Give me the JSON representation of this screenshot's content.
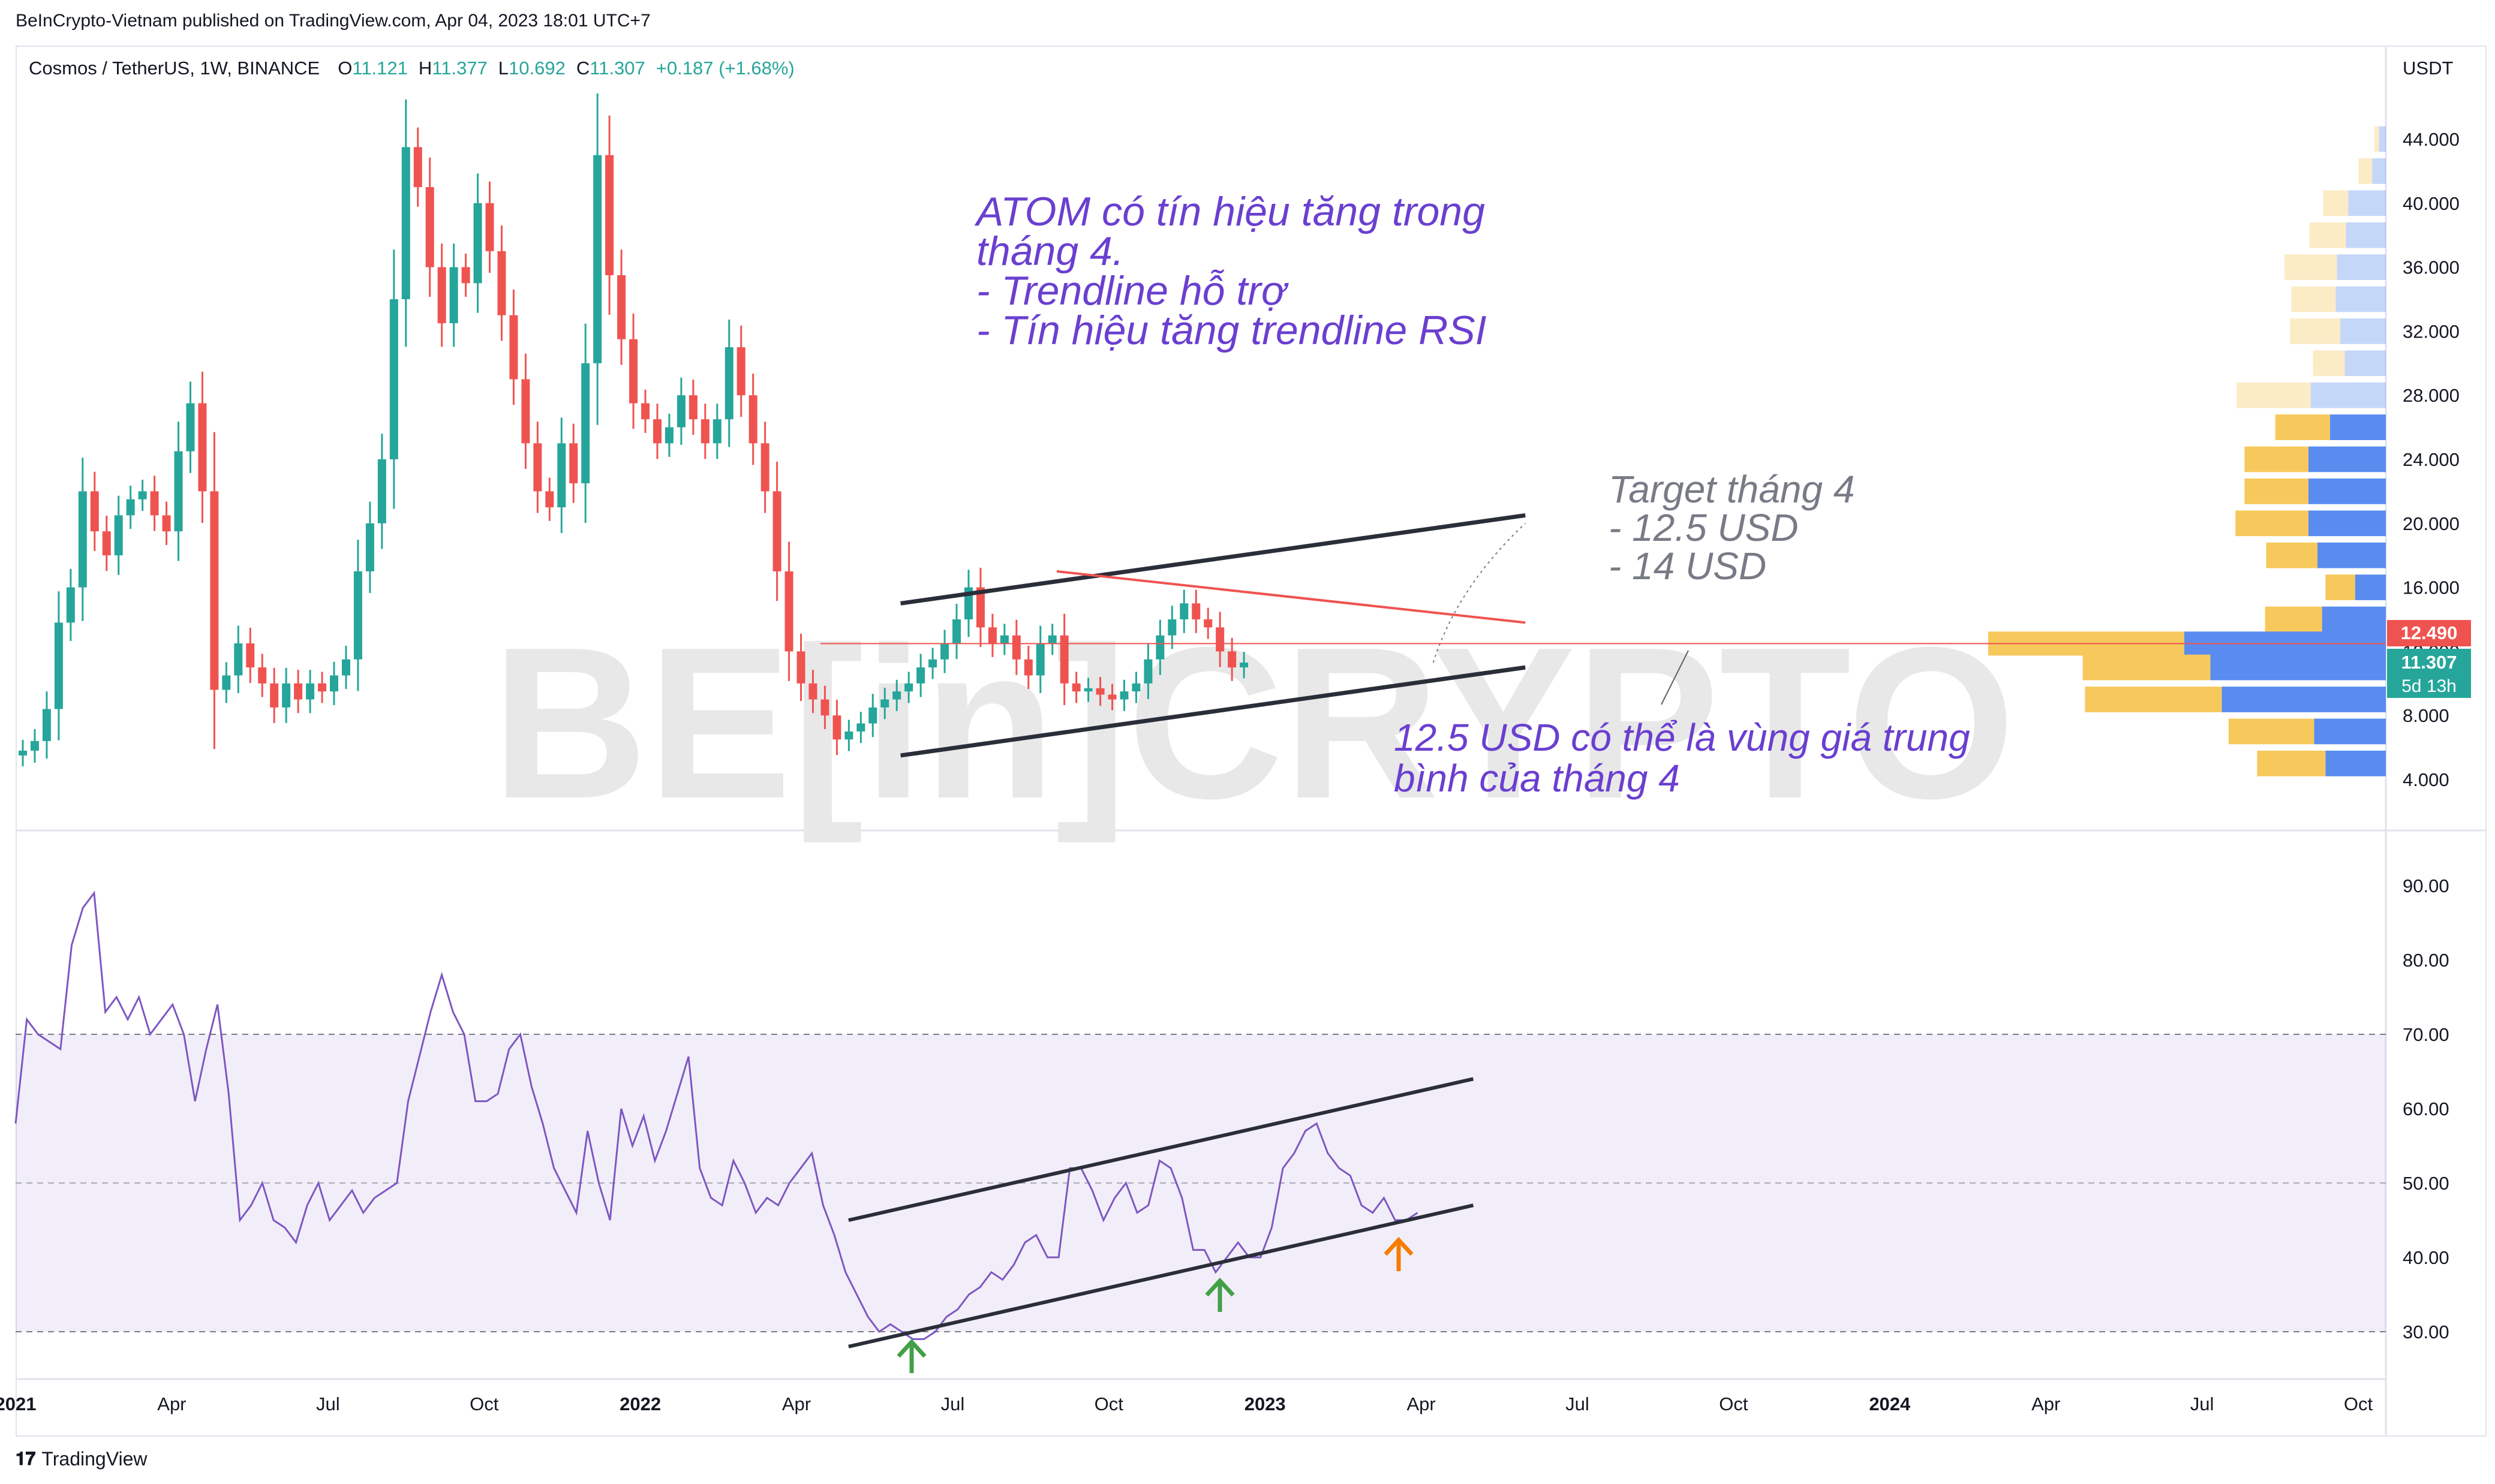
{
  "published": "BeInCrypto-Vietnam published on TradingView.com, Apr 04, 2023 18:01 UTC+7",
  "header": {
    "symbol": "Cosmos / TetherUS, 1W, BINANCE",
    "o_label": "O",
    "o_value": "11.121",
    "h_label": "H",
    "h_value": "11.377",
    "l_label": "L",
    "l_value": "10.692",
    "c_label": "C",
    "c_value": "11.307",
    "change": "+0.187 (+1.68%)"
  },
  "currency": "USDT",
  "watermark": "BE[in]CRYPTO",
  "annotations": {
    "signal_lines": [
      "ATOM có tín hiệu tăng trong",
      "tháng 4.",
      "- Trendline hỗ trợ",
      "- Tín hiệu tăng trendline RSI"
    ],
    "target_lines": [
      "Target tháng 4",
      "- 12.5 USD",
      "- 14 USD"
    ],
    "avg_lines": [
      "12.5 USD có thể là vùng giá trung",
      "bình của tháng 4"
    ]
  },
  "price_badges": {
    "level": "12.490",
    "last": "11.307",
    "countdown": "5d 13h"
  },
  "footer": {
    "brand": "TradingView"
  },
  "colors": {
    "up": "#26a69a",
    "down": "#ef5350",
    "rsi": "#7e57c2",
    "rsi_band": "#7e57c2",
    "annotation_purple": "#6a3fd0",
    "annotation_gray": "#787b86",
    "resistance": "#ef5350",
    "vp_up": "#5a8bef",
    "vp_down": "#f7c95c",
    "green_arrow": "#43a047",
    "orange_arrow": "#f57c00"
  },
  "chart_data": [
    {
      "type": "candlestick",
      "pair": "Cosmos / TetherUS",
      "timeframe": "1W",
      "exchange": "BINANCE",
      "yaxis_ticks": [
        "44.000",
        "40.000",
        "36.000",
        "32.000",
        "28.000",
        "24.000",
        "20.000",
        "16.000",
        "12.000",
        "8.000",
        "4.000"
      ],
      "ylim": [
        2.5,
        45.5
      ],
      "xaxis_ticks": [
        "2021",
        "Apr",
        "Jul",
        "Oct",
        "2022",
        "Apr",
        "Jul",
        "Oct",
        "2023",
        "Apr",
        "Jul",
        "Oct",
        "2024",
        "Apr",
        "Jul",
        "Oct"
      ],
      "x_start": "2021-01",
      "x_end": "2024-11",
      "weekly_close": [
        5.8,
        6.4,
        8.4,
        13.8,
        16.0,
        22.0,
        19.5,
        18.0,
        20.5,
        21.5,
        22.0,
        20.5,
        19.5,
        24.5,
        27.5,
        22.0,
        9.6,
        10.5,
        12.5,
        11.0,
        10.0,
        8.5,
        10.0,
        9.0,
        10.0,
        9.5,
        10.5,
        11.5,
        17.0,
        20.0,
        24.0,
        34.0,
        43.5,
        41.0,
        36.0,
        32.5,
        36.0,
        35.0,
        40.0,
        37.0,
        33.0,
        29.0,
        25.0,
        22.0,
        21.0,
        25.0,
        22.5,
        30.0,
        43.0,
        35.5,
        31.5,
        27.5,
        26.5,
        25.0,
        26.0,
        28.0,
        26.5,
        25.0,
        26.5,
        31.0,
        28.0,
        25.0,
        22.0,
        17.0,
        12.0,
        10.0,
        9.0,
        8.0,
        6.5,
        7.0,
        7.5,
        8.5,
        9.0,
        9.5,
        10.0,
        11.0,
        11.5,
        12.5,
        14.0,
        16.0,
        13.5,
        12.5,
        13.0,
        11.5,
        10.5,
        12.5,
        13.0,
        10.0,
        9.5,
        9.7,
        9.3,
        9.0,
        9.5,
        10.0,
        11.5,
        13.0,
        14.0,
        15.0,
        14.0,
        13.5,
        12.0,
        11.0,
        11.3
      ],
      "support_trendline": {
        "from": [
          "2022-06",
          5.5
        ],
        "to": [
          "2023-06",
          11.0
        ]
      },
      "upper_channel": {
        "from": [
          "2022-06",
          15.0
        ],
        "to": [
          "2023-06",
          20.5
        ]
      },
      "resistance_trendline": {
        "from": [
          "2022-09",
          17.0
        ],
        "to": [
          "2023-06",
          13.8
        ]
      },
      "horizontal_level": 12.49,
      "projection_target": 20.0,
      "volume_profile": {
        "bins": [
          44,
          42,
          40,
          38,
          36,
          34,
          32,
          30,
          28,
          26,
          24,
          22,
          20,
          18,
          16,
          14,
          12.49,
          11,
          9,
          7,
          5
        ],
        "up": [
          0.6,
          1.2,
          3.3,
          3.5,
          4.3,
          4.4,
          4.0,
          3.6,
          6.6,
          4.9,
          6.8,
          6.8,
          6.8,
          6.0,
          2.7,
          5.6,
          17.7,
          15.4,
          14.4,
          6.3,
          5.3
        ],
        "down": [
          0.4,
          1.2,
          2.2,
          3.2,
          4.6,
          3.9,
          4.4,
          2.8,
          6.5,
          4.8,
          5.6,
          5.6,
          6.4,
          4.5,
          2.6,
          5.0,
          17.2,
          11.2,
          12.0,
          7.5,
          6.0
        ]
      }
    },
    {
      "type": "line",
      "indicator": "RSI",
      "yaxis_ticks": [
        "90.00",
        "80.00",
        "70.00",
        "60.00",
        "50.00",
        "40.00",
        "30.00"
      ],
      "ylim": [
        24,
        100
      ],
      "band": [
        30,
        70
      ],
      "midline": 50,
      "values": [
        58,
        72,
        70,
        69,
        68,
        82,
        87,
        89,
        73,
        75,
        72,
        75,
        70,
        72,
        74,
        70,
        61,
        68,
        74,
        62,
        45,
        47,
        50,
        45,
        44,
        42,
        47,
        50,
        45,
        47,
        49,
        46,
        48,
        49,
        50,
        61,
        67,
        73,
        78,
        73,
        70,
        61,
        61,
        62,
        68,
        70,
        63,
        58,
        52,
        49,
        46,
        57,
        50,
        45,
        60,
        55,
        59,
        53,
        57,
        62,
        67,
        52,
        48,
        47,
        53,
        50,
        46,
        48,
        47,
        50,
        52,
        54,
        47,
        43,
        38,
        35,
        32,
        30,
        31,
        30,
        29,
        29,
        30,
        32,
        33,
        35,
        36,
        38,
        37,
        39,
        42,
        43,
        40,
        40,
        52,
        52,
        49,
        45,
        48,
        50,
        46,
        47,
        53,
        52,
        48,
        41,
        41,
        38,
        40,
        42,
        40,
        40,
        44,
        52,
        54,
        57,
        58,
        54,
        52,
        51,
        47,
        46,
        48,
        45,
        45,
        46
      ],
      "trendline_lower": {
        "from": [
          "2022-05",
          28
        ],
        "to": [
          "2023-05",
          47
        ]
      },
      "trendline_upper": {
        "from": [
          "2022-05",
          45
        ],
        "to": [
          "2023-05",
          64
        ]
      }
    }
  ]
}
